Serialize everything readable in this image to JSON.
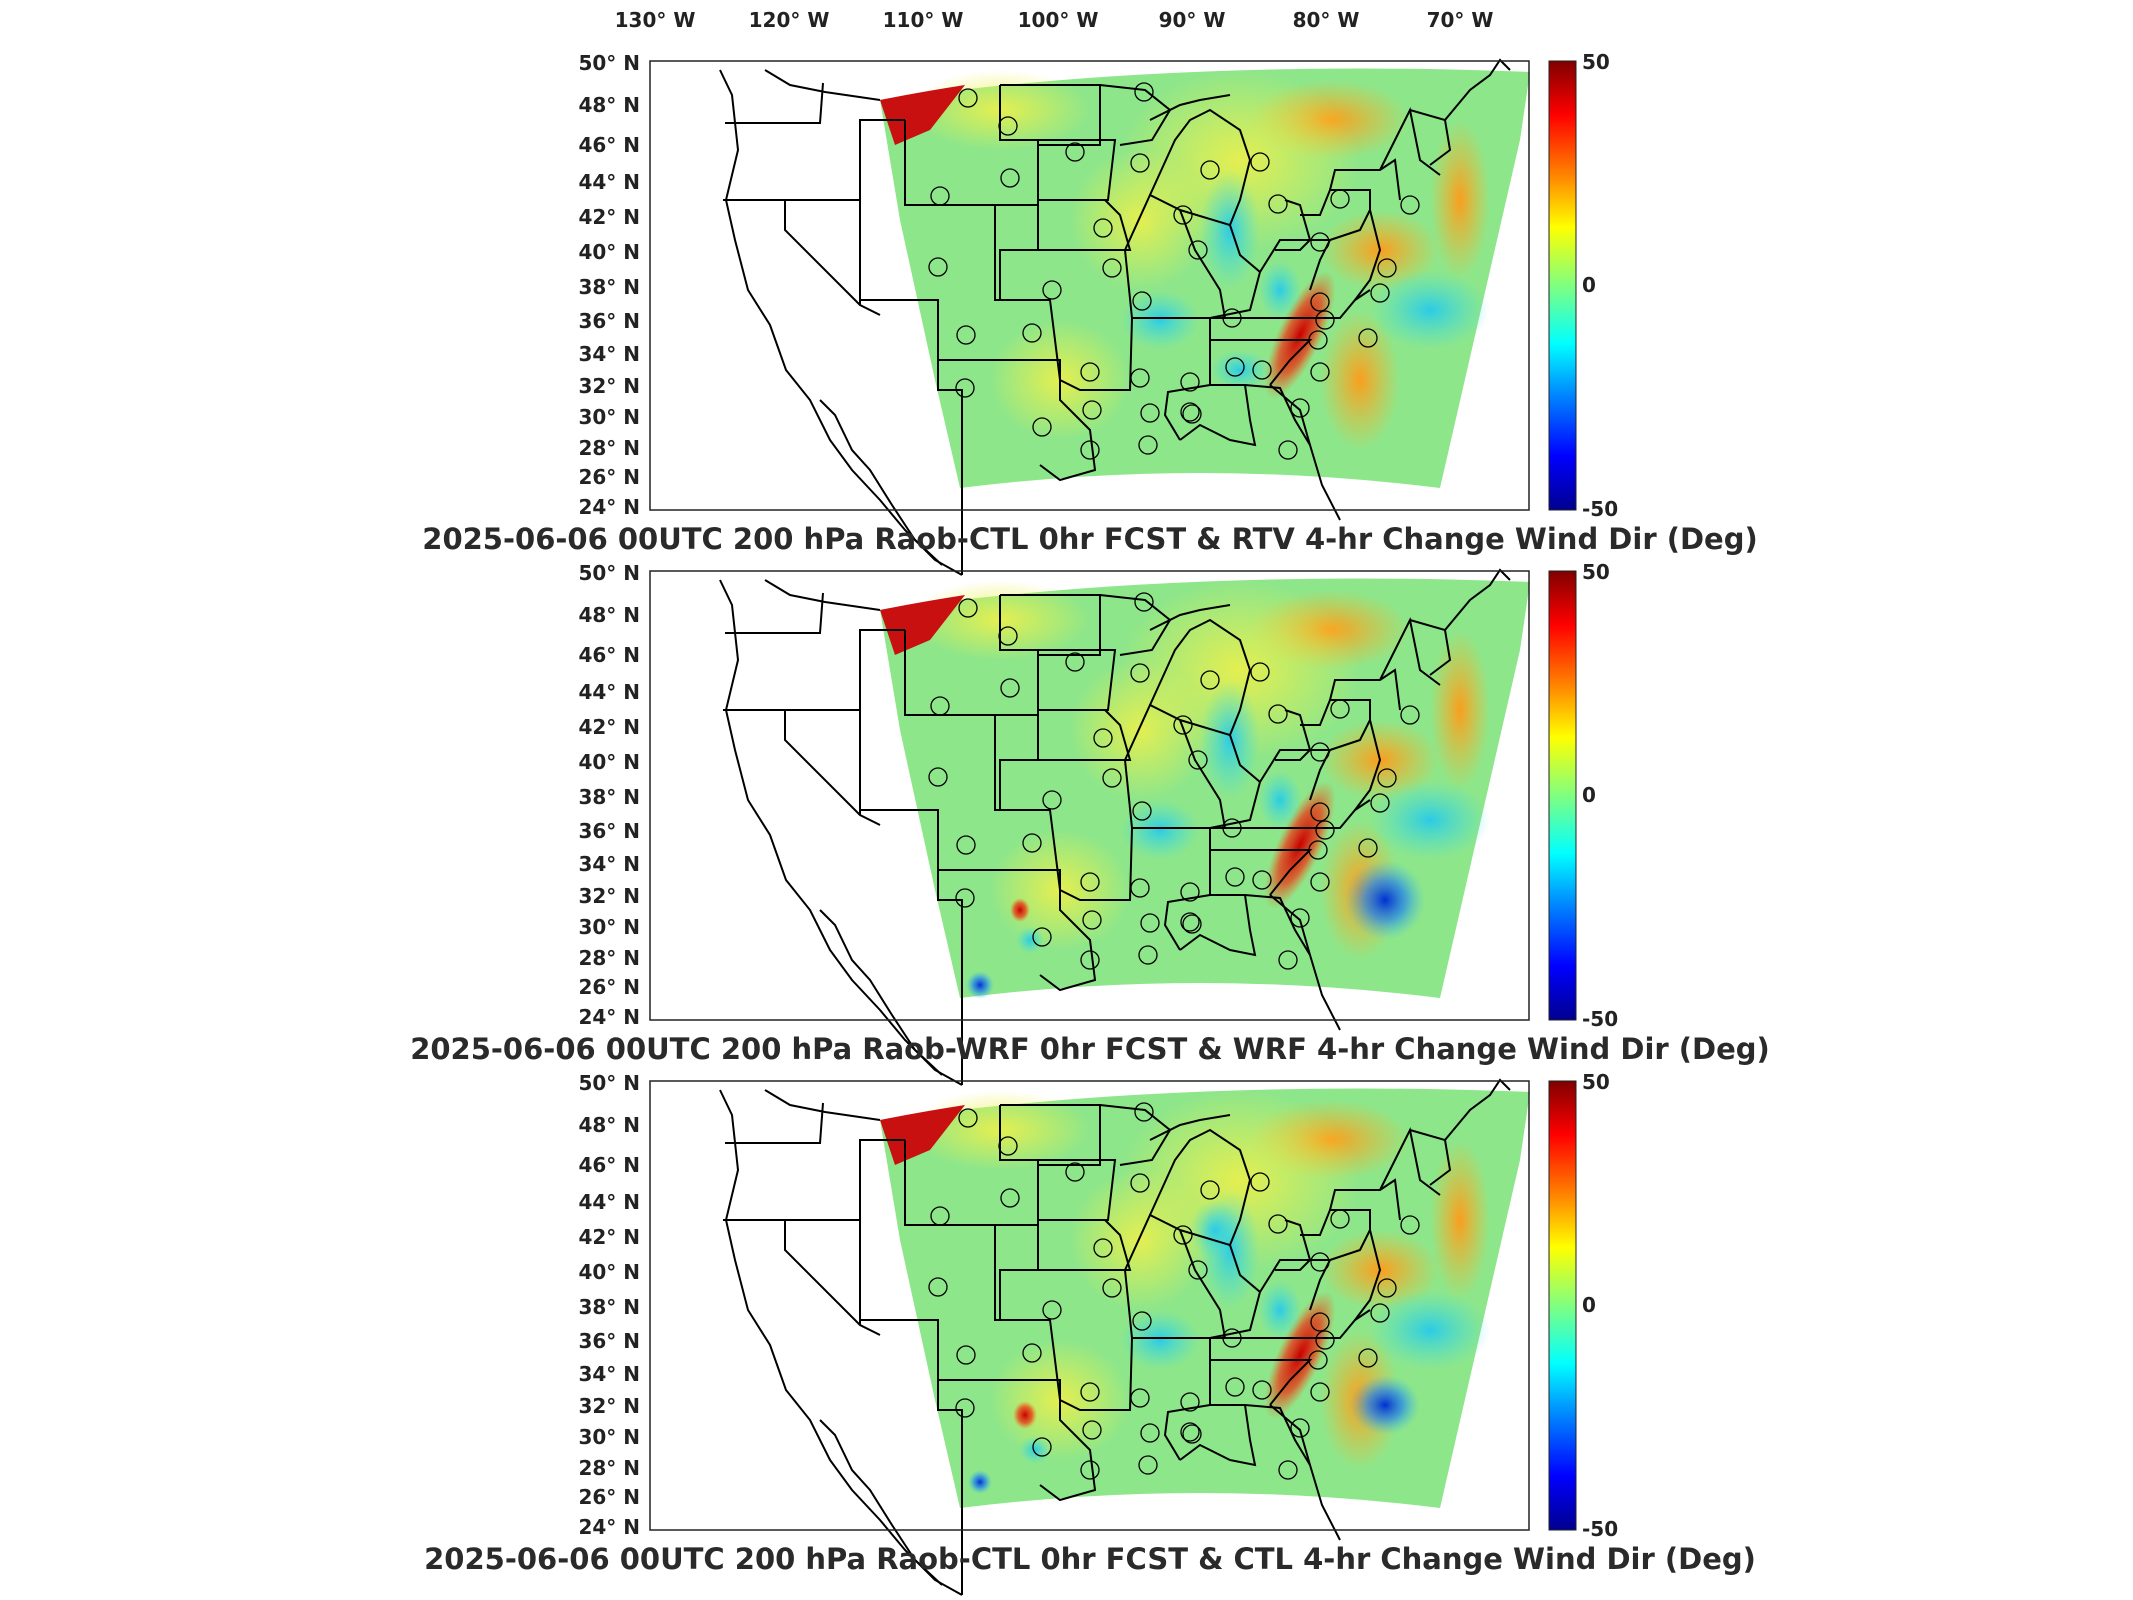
{
  "top_axis": {
    "lon_labels": [
      "130° W",
      "120° W",
      "110° W",
      "100° W",
      "90° W",
      "80° W",
      "70° W"
    ]
  },
  "lat_labels": [
    "50° N",
    "48° N",
    "46° N",
    "44° N",
    "42° N",
    "40° N",
    "38° N",
    "36° N",
    "34° N",
    "32° N",
    "30° N",
    "28° N",
    "26° N",
    "24° N"
  ],
  "colorbar": {
    "max_label": "50",
    "mid_label": "0",
    "min_label": "-50",
    "colormap": [
      "#00008f",
      "#0000ff",
      "#0080ff",
      "#00ffff",
      "#80ff80",
      "#ffff00",
      "#ff8000",
      "#ff0000",
      "#800000"
    ]
  },
  "panels": [
    {
      "title": "2025-06-06 00UTC 200 hPa Raob-CTL 0hr FCST & RTV 4-hr Change Wind Dir (Deg)"
    },
    {
      "title": "2025-06-06 00UTC 200 hPa Raob-WRF 0hr FCST & WRF 4-hr Change Wind Dir (Deg)"
    },
    {
      "title": "2025-06-06 00UTC 200 hPa Raob-CTL 0hr FCST & CTL 4-hr Change Wind Dir (Deg)"
    }
  ],
  "colors": {
    "field_base": "#8ee68a",
    "field_yellow": "#e6ee50",
    "field_orange": "#ffb020",
    "field_red": "#e01010",
    "field_cyan": "#30d8e8",
    "field_blue": "#1050e0",
    "outline": "#000000"
  }
}
